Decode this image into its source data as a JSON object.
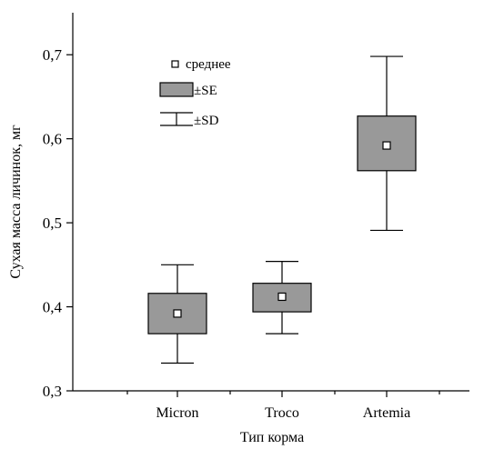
{
  "chart_data": {
    "type": "boxplot",
    "xlabel": "Тип корма",
    "ylabel": "Сухая масса личинок, мг",
    "ylim": [
      0.3,
      0.75
    ],
    "yticks": [
      0.3,
      0.4,
      0.5,
      0.6,
      0.7
    ],
    "ytick_labels": [
      "0,3",
      "0,4",
      "0,5",
      "0,6",
      "0,7"
    ],
    "categories": [
      "Micron",
      "Troco",
      "Artemia"
    ],
    "groups": [
      {
        "category": "Micron",
        "mean": 0.392,
        "se_low": 0.368,
        "se_high": 0.416,
        "sd_low": 0.333,
        "sd_high": 0.45
      },
      {
        "category": "Troco",
        "mean": 0.412,
        "se_low": 0.394,
        "se_high": 0.428,
        "sd_low": 0.368,
        "sd_high": 0.454
      },
      {
        "category": "Artemia",
        "mean": 0.592,
        "se_low": 0.562,
        "se_high": 0.627,
        "sd_low": 0.491,
        "sd_high": 0.698
      }
    ],
    "legend": {
      "placement": "top-left",
      "mean_label": "среднее",
      "se_label": "±SE",
      "sd_label": "±SD"
    },
    "grid": false,
    "colors": {
      "box_fill": "#999999",
      "mean_marker_fill": "#ffffff",
      "line": "#000000"
    }
  }
}
